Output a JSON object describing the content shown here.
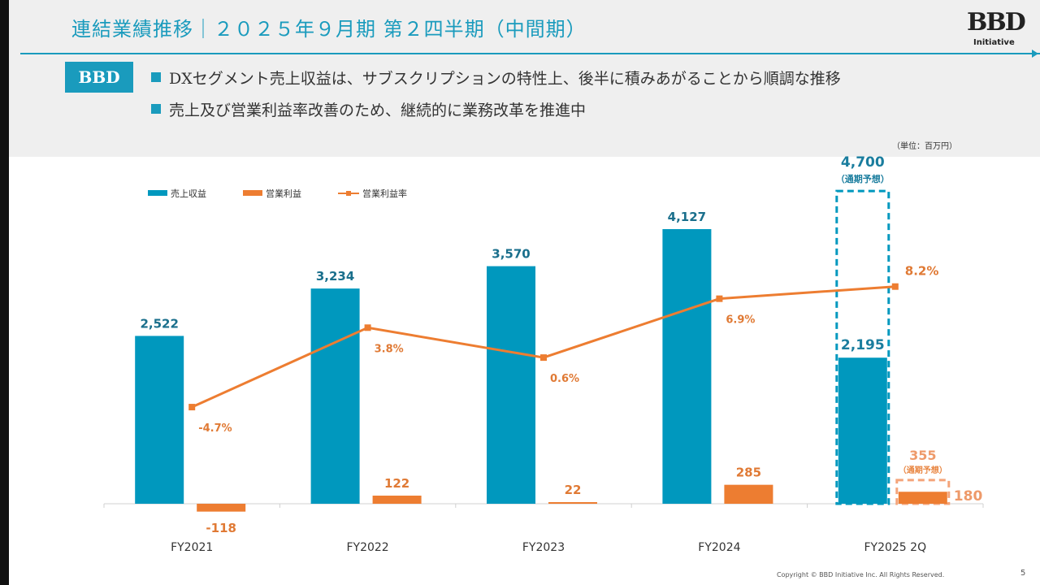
{
  "header": {
    "title": "連結業績推移｜２０２５年９月期 第２四半期（中間期）",
    "logo_main": "BBD",
    "logo_sub": "Initiative",
    "badge": "BBD",
    "bullets": [
      "DXセグメント売上収益は、サブスクリプションの特性上、後半に積みあがることから順調な推移",
      "売上及び営業利益率改善のため、継続的に業務改革を推進中"
    ]
  },
  "unit_label": "（単位：百万円）",
  "legend": {
    "revenue": "売上収益",
    "op_income": "営業利益",
    "op_margin": "営業利益率"
  },
  "chart_data": {
    "type": "bar",
    "categories": [
      "FY2021",
      "FY2022",
      "FY2023",
      "FY2024",
      "FY2025 2Q"
    ],
    "series": [
      {
        "name": "売上収益",
        "type": "bar",
        "values": [
          2522,
          3234,
          3570,
          4127,
          2195
        ],
        "labels": [
          "2,522",
          "3,234",
          "3,570",
          "4,127",
          "2,195"
        ]
      },
      {
        "name": "営業利益",
        "type": "bar",
        "values": [
          -118,
          122,
          22,
          285,
          180
        ],
        "labels": [
          "-118",
          "122",
          "22",
          "285",
          "180"
        ]
      },
      {
        "name": "営業利益率",
        "type": "line",
        "values": [
          -4.7,
          3.8,
          0.6,
          6.9,
          8.2
        ],
        "labels": [
          "-4.7%",
          "3.8%",
          "0.6%",
          "6.9%",
          "8.2%"
        ]
      }
    ],
    "forecast": {
      "revenue": {
        "value": 4700,
        "label": "4,700",
        "note": "（通期予想）"
      },
      "op_income": {
        "value": 355,
        "label": "355",
        "note": "（通期予想）"
      }
    }
  },
  "colors": {
    "revenue": "#0098be",
    "op_income": "#ed7d31",
    "accent": "#1a9bbd"
  },
  "footer": {
    "copyright": "Copyright © BBD Initiative Inc. All Rights Reserved.",
    "page": "5"
  }
}
